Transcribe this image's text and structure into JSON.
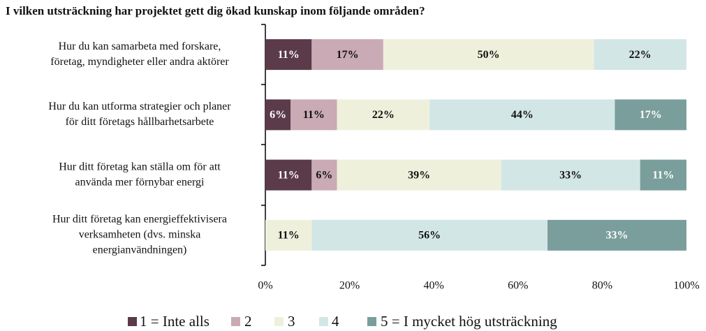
{
  "chart_data": {
    "type": "stacked_barh",
    "title": "I vilken utsträckning har projektet gett dig ökad kunskap inom följande områden?",
    "categories": [
      [
        "Hur du kan samarbeta med forskare,",
        "företag, myndigheter eller andra aktörer"
      ],
      [
        "Hur du kan utforma strategier och planer",
        "för ditt företags hållbarhetsarbete"
      ],
      [
        "Hur ditt företag kan ställa om för att",
        "använda mer förnybar energi"
      ],
      [
        "Hur ditt företag kan energieffektivisera",
        "verksamheten (dvs. minska",
        "energianvändningen)"
      ]
    ],
    "series": [
      {
        "name": "1 = Inte alls",
        "color": "#5b3a4a",
        "values": [
          11,
          6,
          11,
          null
        ],
        "value_labels": [
          "11%",
          "6%",
          "11%",
          null
        ]
      },
      {
        "name": "2",
        "color": "#c9aab5",
        "values": [
          17,
          11,
          6,
          null
        ],
        "value_labels": [
          "17%",
          "11%",
          "6%",
          null
        ]
      },
      {
        "name": "3",
        "color": "#eff0dc",
        "values": [
          50,
          22,
          39,
          11
        ],
        "value_labels": [
          "50%",
          "22%",
          "39%",
          "11%"
        ]
      },
      {
        "name": "4",
        "color": "#d3e6e6",
        "values": [
          22,
          44,
          33,
          56
        ],
        "value_labels": [
          "22%",
          "44%",
          "33%",
          "56%"
        ]
      },
      {
        "name": "5 = I mycket hög utsträckning",
        "color": "#7a9e9c",
        "values": [
          null,
          17,
          11,
          33
        ],
        "value_labels": [
          null,
          "17%",
          "11%",
          "33%"
        ]
      }
    ],
    "xlim": [
      0,
      100
    ],
    "xticks": [
      {
        "value": 0,
        "label": "0%"
      },
      {
        "value": 20,
        "label": "20%"
      },
      {
        "value": 40,
        "label": "40%"
      },
      {
        "value": 60,
        "label": "60%"
      },
      {
        "value": 80,
        "label": "80%"
      },
      {
        "value": 100,
        "label": "100%"
      }
    ],
    "grid": false,
    "legend": "bottom"
  }
}
